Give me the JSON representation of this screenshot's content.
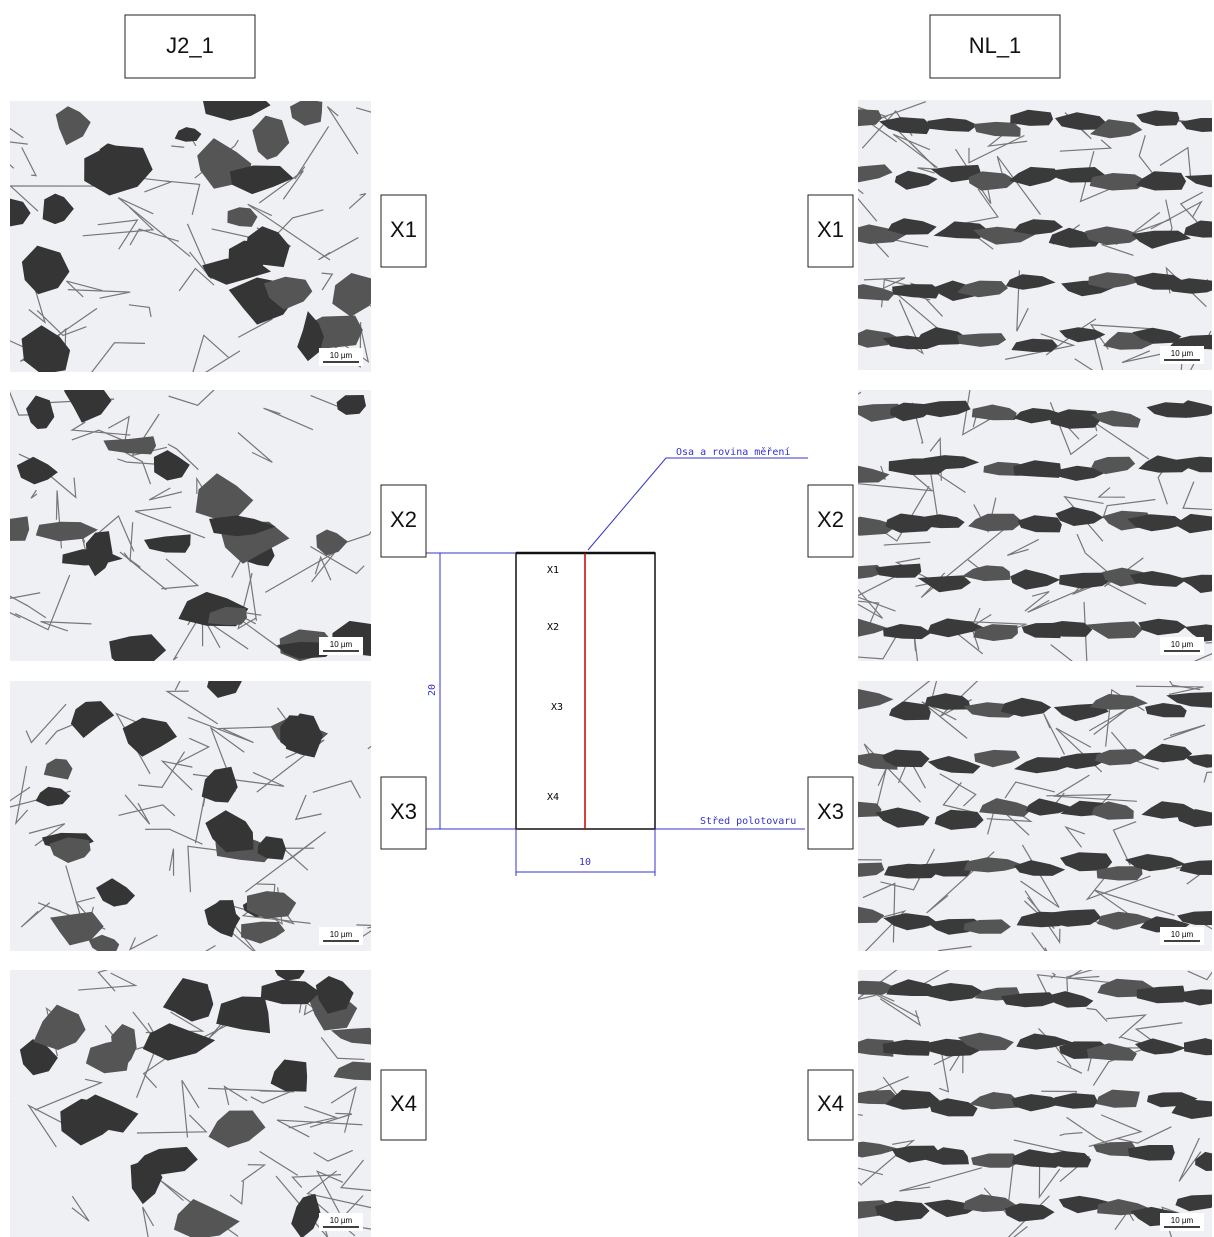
{
  "header": {
    "left": "J2_1",
    "right": "NL_1"
  },
  "left_panels": [
    {
      "label": "X1",
      "scale": "10 µm"
    },
    {
      "label": "X2",
      "scale": "10 µm"
    },
    {
      "label": "X3",
      "scale": "10 µm"
    },
    {
      "label": "X4",
      "scale": "10 µm"
    }
  ],
  "right_panels": [
    {
      "label": "X1",
      "scale": "10 µm"
    },
    {
      "label": "X2",
      "scale": "10 µm"
    },
    {
      "label": "X3",
      "scale": "10 µm"
    },
    {
      "label": "X4",
      "scale": "10 µm"
    }
  ],
  "diagram": {
    "positions": [
      "X1",
      "X2",
      "X3",
      "X4"
    ],
    "height": 20,
    "width": 10,
    "axis_label": "Osa a rovina měření",
    "center_label": "Střed polotovaru"
  }
}
